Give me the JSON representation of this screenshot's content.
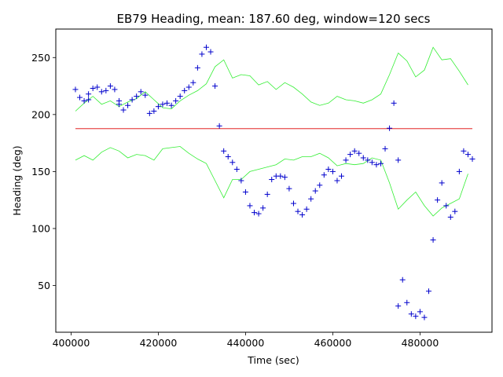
{
  "chart_data": {
    "type": "scatter",
    "title": "EB79 Heading, mean: 187.60 deg, window=120 secs",
    "xlabel": "Time (sec)",
    "ylabel": "Heading (deg)",
    "xlim": [
      396500,
      496500
    ],
    "ylim": [
      9,
      275
    ],
    "xticks": [
      400000,
      420000,
      440000,
      460000,
      480000
    ],
    "xtick_labels": [
      "400000",
      "420000",
      "440000",
      "460000",
      "480000"
    ],
    "yticks": [
      50,
      100,
      150,
      200,
      250
    ],
    "ytick_labels": [
      "50",
      "100",
      "150",
      "200",
      "250"
    ],
    "grid": false,
    "colors": {
      "heading": "#0000cc",
      "mean": "#dd0000",
      "band": "#33ee33"
    },
    "mean_line": {
      "y": 187.6,
      "x_range": [
        401000,
        492000
      ]
    },
    "heading_series": {
      "name": "",
      "marker": "+",
      "x": [
        401000,
        402000,
        403000,
        404000,
        405000,
        406000,
        407000,
        408000,
        409000,
        410000,
        411000,
        412000,
        413000,
        414000,
        415000,
        416000,
        417000,
        418000,
        419000,
        420000,
        421000,
        422000,
        423000,
        424000,
        425000,
        426000,
        427000,
        428000,
        429000,
        430000,
        431000,
        432000,
        433000,
        434000,
        435000,
        436000,
        437000,
        438000,
        439000,
        440000,
        441000,
        442000,
        443000,
        444000,
        445000,
        446000,
        447000,
        448000,
        449000,
        450000,
        451000,
        452000,
        453000,
        454000,
        455000,
        456000,
        457000,
        458000,
        459000,
        460000,
        461000,
        462000,
        463000,
        464000,
        465000,
        466000,
        467000,
        468000,
        469000,
        470000,
        471000,
        472000,
        473000,
        474000,
        475000,
        476000,
        477000,
        478000,
        479000,
        480000,
        481000,
        482000,
        483000,
        484000,
        485000,
        486000,
        487000,
        488000,
        489000,
        490000,
        491000,
        492000
      ],
      "y": [
        222,
        215,
        212,
        213,
        223,
        224,
        220,
        221,
        225,
        222,
        212,
        204,
        208,
        213,
        216,
        220,
        217,
        201,
        203,
        207,
        209,
        210,
        208,
        212,
        216,
        221,
        224,
        228,
        241,
        253,
        259,
        255,
        225,
        190,
        168,
        163,
        158,
        152,
        142,
        132,
        120,
        114,
        113,
        118,
        130,
        143,
        146,
        146,
        145,
        135,
        122,
        115,
        112,
        117,
        126,
        133,
        138,
        147,
        152,
        150,
        142,
        146,
        160,
        165,
        168,
        166,
        162,
        160,
        158,
        156,
        157,
        170,
        188,
        210,
        32,
        55,
        35,
        25,
        23,
        27,
        22,
        45,
        90,
        125,
        140,
        120,
        110,
        115,
        150,
        168,
        165,
        161
      ]
    },
    "outliers": {
      "x": [
        404000,
        411000,
        475000
      ],
      "y": [
        218,
        209,
        160
      ]
    },
    "upper_band": {
      "x": [
        401000,
        403000,
        405000,
        407000,
        409000,
        411000,
        413000,
        415000,
        417000,
        419000,
        421000,
        423000,
        425000,
        427000,
        429000,
        431000,
        433000,
        435000,
        437000,
        439000,
        441000,
        443000,
        445000,
        447000,
        449000,
        451000,
        453000,
        455000,
        457000,
        459000,
        461000,
        463000,
        465000,
        467000,
        469000,
        471000,
        473000,
        475000,
        477000,
        479000,
        481000,
        483000,
        485000,
        487000,
        489000,
        491000
      ],
      "y": [
        203,
        210,
        216,
        209,
        212,
        207,
        211,
        214,
        220,
        213,
        206,
        205,
        212,
        217,
        221,
        227,
        242,
        248,
        232,
        235,
        234,
        226,
        229,
        222,
        228,
        224,
        218,
        211,
        208,
        210,
        216,
        213,
        212,
        210,
        213,
        218,
        235,
        254,
        247,
        233,
        239,
        259,
        248,
        249,
        238,
        226
      ]
    },
    "lower_band": {
      "x": [
        401000,
        403000,
        405000,
        407000,
        409000,
        411000,
        413000,
        415000,
        417000,
        419000,
        421000,
        423000,
        425000,
        427000,
        429000,
        431000,
        433000,
        435000,
        437000,
        439000,
        441000,
        443000,
        445000,
        447000,
        449000,
        451000,
        453000,
        455000,
        457000,
        459000,
        461000,
        463000,
        465000,
        467000,
        469000,
        471000,
        473000,
        475000,
        477000,
        479000,
        481000,
        483000,
        485000,
        487000,
        489000,
        491000
      ],
      "y": [
        160,
        164,
        160,
        167,
        171,
        168,
        162,
        165,
        164,
        160,
        170,
        171,
        172,
        166,
        161,
        157,
        142,
        127,
        143,
        143,
        150,
        152,
        154,
        156,
        161,
        160,
        163,
        163,
        166,
        162,
        155,
        157,
        156,
        157,
        162,
        160,
        140,
        117,
        125,
        132,
        120,
        111,
        118,
        122,
        126,
        148
      ]
    }
  }
}
